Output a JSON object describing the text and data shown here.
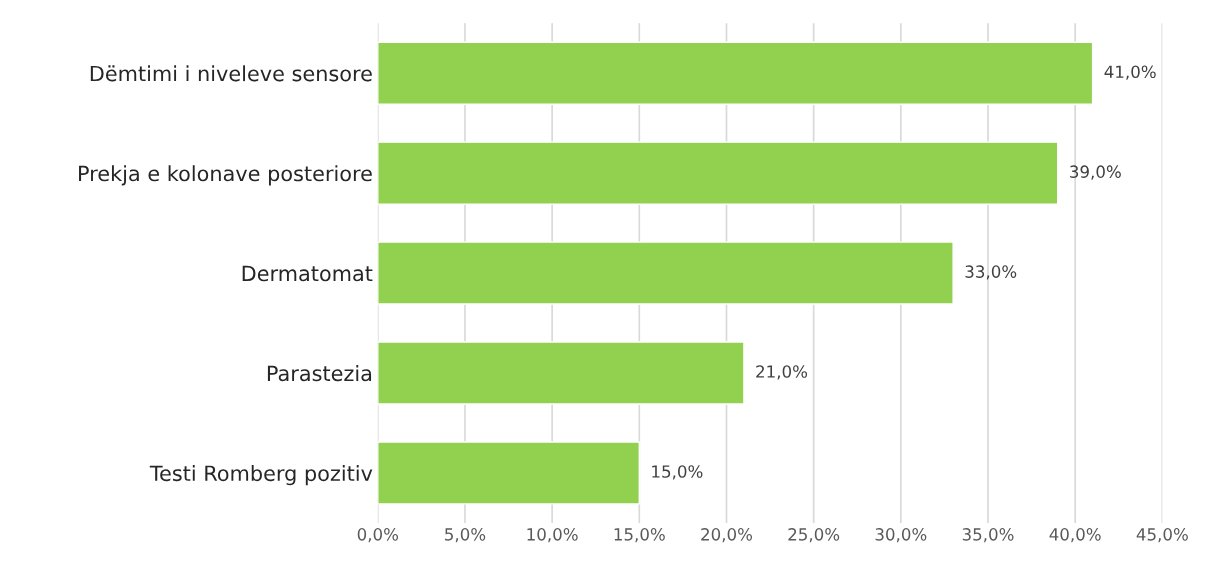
{
  "chart_data": {
    "type": "bar",
    "orientation": "horizontal",
    "categories": [
      "Dëmtimi i niveleve sensore",
      "Prekja e kolonave posteriore",
      "Dermatomat",
      "Parastezia",
      "Testi Romberg pozitiv"
    ],
    "values": [
      41,
      39,
      33,
      21,
      15
    ],
    "color": "#92d050",
    "value_labels": [
      "41,0%",
      "39,0%",
      "33,0%",
      "21,0%",
      "15,0%"
    ],
    "xlim": [
      0,
      45
    ],
    "xticks": [
      {
        "value": 0,
        "label": "0,0%"
      },
      {
        "value": 5,
        "label": "5,0%"
      },
      {
        "value": 10,
        "label": "10,0%"
      },
      {
        "value": 15,
        "label": "15,0%"
      },
      {
        "value": 20,
        "label": "20,0%"
      },
      {
        "value": 25,
        "label": "25,0%"
      },
      {
        "value": 30,
        "label": "30,0%"
      },
      {
        "value": 35,
        "label": "35,0%"
      },
      {
        "value": 40,
        "label": "40,0%"
      },
      {
        "value": 45,
        "label": "45,0%"
      }
    ],
    "grid": "x"
  }
}
